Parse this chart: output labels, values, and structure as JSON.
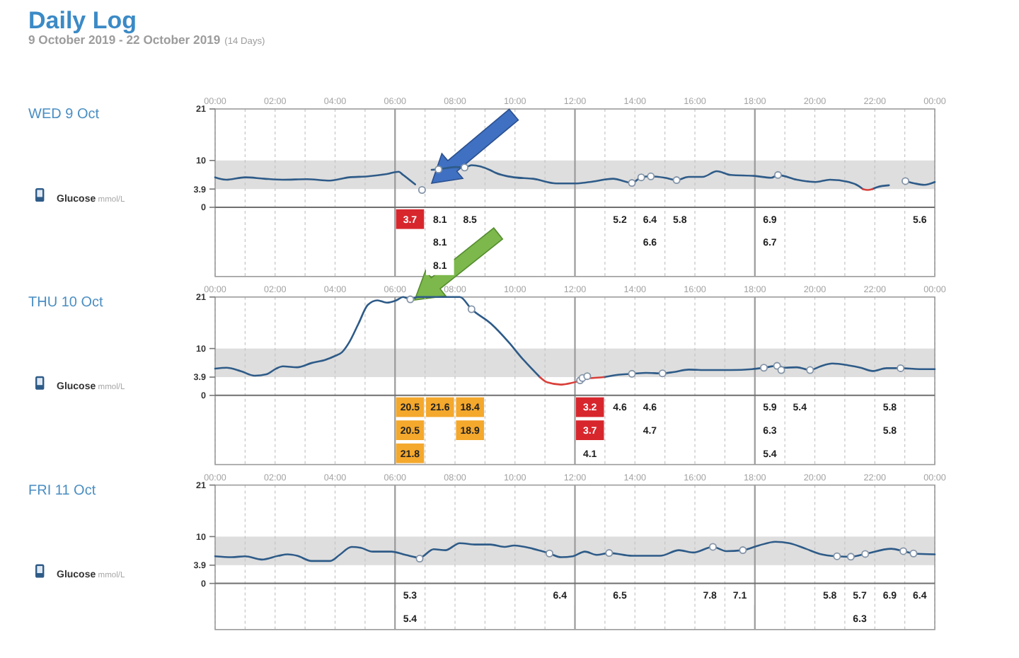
{
  "chart_data": [
    {
      "type": "line",
      "ylabel": "Glucose mmol/L",
      "annotations": [
        "Daily Log",
        "9 October 2019 - 22 October 2019",
        "(14 Days)",
        "WED 9 Oct"
      ],
      "xlim": [
        0,
        24
      ],
      "xticks": [
        {
          "value": 0,
          "label": "00:00"
        },
        {
          "value": 1,
          "label": null
        },
        {
          "value": 2,
          "label": "02:00"
        },
        {
          "value": 3,
          "label": null
        },
        {
          "value": 4,
          "label": "04:00"
        },
        {
          "value": 5,
          "label": null
        },
        {
          "value": 7,
          "label": null
        },
        {
          "value": 8,
          "label": "08:00"
        },
        {
          "value": 9,
          "label": null
        },
        {
          "value": 10,
          "label": "10:00"
        },
        {
          "value": 11,
          "label": null
        },
        {
          "value": 13,
          "label": null
        },
        {
          "value": 14,
          "label": "14:00"
        },
        {
          "value": 15,
          "label": null
        },
        {
          "value": 16,
          "label": "16:00"
        },
        {
          "value": 17,
          "label": null
        },
        {
          "value": 19,
          "label": null
        },
        {
          "value": 20,
          "label": "20:00"
        },
        {
          "value": 21,
          "label": null
        },
        {
          "value": 22,
          "label": "22:00"
        },
        {
          "value": 23,
          "label": null
        },
        {
          "value": 24,
          "label": "00:00"
        }
      ],
      "ylim": [
        0,
        21
      ],
      "yticks": [
        0,
        3.9,
        10,
        21
      ],
      "grid": "x",
      "bands": [
        {
          "axis": "y",
          "from": 3.9,
          "to": 10,
          "color": "#dedede"
        }
      ],
      "ref_lines": [
        {
          "axis": "x",
          "value": 6,
          "label": "06:00",
          "color": "#9a9a9a"
        },
        {
          "axis": "x",
          "value": 12,
          "label": "12:00",
          "color": "#9a9a9a"
        },
        {
          "axis": "x",
          "value": 18,
          "label": "18:00",
          "color": "#9a9a9a"
        }
      ],
      "series": [
        {
          "color": "#2e5b88",
          "x": [
            0,
            0.38,
            1.0,
            1.64,
            2.26,
            3.05,
            3.83,
            4.47,
            5.09,
            5.72,
            6.12,
            6.27,
            6.67,
            6.8,
            7.22,
            7.45,
            8.0,
            8.32,
            8.55,
            9.19,
            9.34,
            9.97,
            10.6,
            11.38,
            12.01,
            12.49,
            13.27,
            13.9,
            14.21,
            14.53,
            15.0,
            15.39,
            15.79,
            16.26,
            16.73,
            17.2,
            17.99,
            18.54,
            18.77,
            19.4,
            20.03,
            20.5,
            21.13,
            21.45,
            21.6,
            21.76,
            21.92,
            22.08,
            22.47,
            22.7,
            23.02,
            23.33,
            23.65,
            24
          ],
          "values": [
            6.4,
            5.9,
            6.4,
            6.1,
            5.9,
            6.0,
            5.7,
            6.4,
            6.6,
            7.1,
            7.6,
            6.9,
            4.9,
            null,
            8.0,
            8.1,
            8.6,
            8.5,
            9.0,
            7.9,
            7.4,
            6.4,
            6.1,
            5.1,
            5.1,
            5.4,
            6.1,
            5.2,
            6.4,
            6.6,
            6.3,
            5.8,
            6.5,
            6.5,
            7.7,
            6.9,
            6.7,
            6.3,
            6.9,
            5.9,
            5.4,
            5.9,
            5.4,
            4.6,
            3.9,
            null,
            3.9,
            4.3,
            4.7,
            null,
            5.6,
            5.1,
            4.8,
            5.4
          ]
        },
        {
          "color": "#d9403a",
          "x": [
            21.6,
            21.76,
            21.92
          ],
          "values": [
            3.9,
            3.7,
            3.9
          ]
        },
        {
          "type": "scatter",
          "marker": "circle",
          "color": "#8494a8",
          "x": [
            6.9,
            7.45,
            8.32,
            13.9,
            14.21,
            14.53,
            15.39,
            18.77,
            23.02
          ],
          "values": [
            3.7,
            8.1,
            8.5,
            5.2,
            6.4,
            6.6,
            5.8,
            6.9,
            5.6
          ]
        }
      ]
    },
    {
      "type": "other",
      "data_labels": true,
      "categories": [
        null,
        null,
        null,
        null,
        null,
        null,
        null,
        null,
        null,
        null,
        null,
        null,
        null,
        null,
        null,
        null,
        null,
        null,
        null,
        null,
        null,
        null,
        null,
        null
      ],
      "values": [
        null,
        null,
        null,
        null,
        null,
        null,
        3.7,
        8.1,
        8.5,
        null,
        null,
        null,
        null,
        5.2,
        6.4,
        5.8,
        null,
        null,
        6.9,
        null,
        null,
        null,
        null,
        5.6
      ],
      "colors": [
        null,
        null,
        null,
        null,
        null,
        null,
        "#d8262d",
        "#ffffff",
        "#ffffff",
        null,
        null,
        null,
        null,
        "#ffffff",
        "#ffffff",
        "#ffffff",
        null,
        null,
        "#ffffff",
        null,
        null,
        null,
        null,
        "#ffffff"
      ]
    },
    {
      "type": "other",
      "data_labels": true,
      "categories": [
        null,
        null,
        null,
        null,
        null,
        null,
        null,
        null,
        null,
        null,
        null,
        null,
        null,
        null,
        null,
        null,
        null,
        null,
        null,
        null,
        null,
        null,
        null,
        null
      ],
      "values": [
        null,
        null,
        null,
        null,
        null,
        null,
        null,
        8.1,
        null,
        null,
        null,
        null,
        null,
        null,
        6.6,
        null,
        null,
        null,
        6.7,
        null,
        null,
        null,
        null,
        null
      ],
      "colors": [
        null,
        null,
        null,
        null,
        null,
        null,
        null,
        "#ffffff",
        null,
        null,
        null,
        null,
        null,
        null,
        "#ffffff",
        null,
        null,
        null,
        "#ffffff",
        null,
        null,
        null,
        null,
        null
      ]
    },
    {
      "type": "other",
      "data_labels": true,
      "categories": [
        null,
        null,
        null,
        null,
        null,
        null,
        null,
        null,
        null,
        null,
        null,
        null,
        null,
        null,
        null,
        null,
        null,
        null,
        null,
        null,
        null,
        null,
        null,
        null
      ],
      "values": [
        null,
        null,
        null,
        null,
        null,
        null,
        null,
        8.1,
        null,
        null,
        null,
        null,
        null,
        null,
        null,
        null,
        null,
        null,
        null,
        null,
        null,
        null,
        null,
        null
      ],
      "colors": [
        null,
        null,
        null,
        null,
        null,
        null,
        null,
        "#ffffff",
        null,
        null,
        null,
        null,
        null,
        null,
        null,
        null,
        null,
        null,
        null,
        null,
        null,
        null,
        null,
        null
      ]
    },
    {
      "type": "line",
      "ylabel": "Glucose mmol/L",
      "annotations": [
        "THU 10 Oct"
      ],
      "xlim": [
        0,
        24
      ],
      "xticks": [
        {
          "value": 0,
          "label": "00:00"
        },
        {
          "value": 1,
          "label": null
        },
        {
          "value": 2,
          "label": "02:00"
        },
        {
          "value": 3,
          "label": null
        },
        {
          "value": 4,
          "label": "04:00"
        },
        {
          "value": 5,
          "label": null
        },
        {
          "value": 7,
          "label": null
        },
        {
          "value": 8,
          "label": "08:00"
        },
        {
          "value": 9,
          "label": null
        },
        {
          "value": 10,
          "label": "10:00"
        },
        {
          "value": 11,
          "label": null
        },
        {
          "value": 13,
          "label": null
        },
        {
          "value": 14,
          "label": "14:00"
        },
        {
          "value": 15,
          "label": null
        },
        {
          "value": 16,
          "label": "16:00"
        },
        {
          "value": 17,
          "label": null
        },
        {
          "value": 19,
          "label": null
        },
        {
          "value": 20,
          "label": "20:00"
        },
        {
          "value": 21,
          "label": null
        },
        {
          "value": 22,
          "label": "22:00"
        },
        {
          "value": 23,
          "label": null
        },
        {
          "value": 24,
          "label": "00:00"
        }
      ],
      "ylim": [
        0,
        21
      ],
      "yticks": [
        0,
        3.9,
        10,
        21
      ],
      "grid": "x",
      "bands": [
        {
          "axis": "y",
          "from": 3.9,
          "to": 10,
          "color": "#dedede"
        }
      ],
      "ref_lines": [
        {
          "axis": "x",
          "value": 6,
          "label": "06:00",
          "color": "#9a9a9a"
        },
        {
          "axis": "x",
          "value": 12,
          "label": "12:00",
          "color": "#9a9a9a"
        },
        {
          "axis": "x",
          "value": 18,
          "label": "18:00",
          "color": "#9a9a9a"
        }
      ],
      "series": [
        {
          "color": "#2e5b88",
          "x": [
            0,
            0.38,
            0.85,
            1.32,
            1.71,
            2.03,
            2.26,
            2.74,
            3.21,
            3.68,
            3.99,
            4.23,
            4.46,
            4.78,
            5.09,
            5.41,
            5.72,
            6.04,
            6.27,
            6.51,
            6.75,
            8.16,
            8.55,
            9.2,
            9.81,
            10.2,
            10.83,
            11.5,
            12.96,
            13.43,
            13.9,
            14.37,
            14.92,
            15.31,
            15.79,
            16.42,
            17.2,
            17.91,
            18.3,
            18.74,
            19.0,
            19.4,
            19.84,
            20.19,
            20.58,
            21.13,
            21.53,
            21.92,
            22.39,
            22.86,
            23.49,
            24
          ],
          "values": [
            5.7,
            5.9,
            5.2,
            4.2,
            4.5,
            5.7,
            6.2,
            6.0,
            6.9,
            7.6,
            8.4,
            9.2,
            11.2,
            15.3,
            19.3,
            20.3,
            19.8,
            20.3,
            21,
            20.5,
            21,
            21,
            18.4,
            15.3,
            11.2,
            8.2,
            3.9,
            null,
            3.9,
            4.4,
            4.6,
            4.8,
            4.7,
            5.0,
            5.5,
            5.4,
            5.4,
            5.6,
            5.9,
            6.3,
            5.9,
            6.0,
            5.4,
            6.2,
            6.8,
            6.4,
            5.9,
            5.2,
            5.8,
            5.8,
            5.6,
            5.6
          ]
        },
        {
          "color": "#d9403a",
          "x": [
            10.83,
            11.07,
            11.54,
            11.86,
            12.17,
            12.3,
            12.6,
            12.96
          ],
          "values": [
            3.9,
            2.8,
            2.3,
            2.6,
            3.2,
            3.6,
            3.7,
            3.9
          ]
        },
        {
          "type": "scatter",
          "marker": "circle",
          "color": "#8494a8",
          "x": [
            6.51,
            8.55,
            12.17,
            12.25,
            12.41,
            13.9,
            14.92,
            18.3,
            18.74,
            18.88,
            19.84,
            22.86
          ],
          "values": [
            20.5,
            18.4,
            3.2,
            3.7,
            4.1,
            4.6,
            4.7,
            5.9,
            6.3,
            5.4,
            5.4,
            5.8
          ]
        }
      ]
    },
    {
      "type": "other",
      "data_labels": true,
      "categories": [
        null,
        null,
        null,
        null,
        null,
        null,
        null,
        null,
        null,
        null,
        null,
        null,
        null,
        null,
        null,
        null,
        null,
        null,
        null,
        null,
        null,
        null,
        null,
        null
      ],
      "values": [
        null,
        null,
        null,
        null,
        null,
        null,
        20.5,
        21.6,
        18.4,
        null,
        null,
        null,
        3.2,
        4.6,
        4.6,
        null,
        null,
        null,
        5.9,
        5.4,
        null,
        null,
        5.8,
        null
      ],
      "colors": [
        null,
        null,
        null,
        null,
        null,
        null,
        "#f4a82c",
        "#f4a82c",
        "#f4a82c",
        null,
        null,
        null,
        "#d8262d",
        "#ffffff",
        "#ffffff",
        null,
        null,
        null,
        "#ffffff",
        "#ffffff",
        null,
        null,
        "#ffffff",
        null
      ]
    },
    {
      "type": "other",
      "data_labels": true,
      "categories": [
        null,
        null,
        null,
        null,
        null,
        null,
        null,
        null,
        null,
        null,
        null,
        null,
        null,
        null,
        null,
        null,
        null,
        null,
        null,
        null,
        null,
        null,
        null,
        null
      ],
      "values": [
        null,
        null,
        null,
        null,
        null,
        null,
        20.5,
        null,
        18.9,
        null,
        null,
        null,
        3.7,
        null,
        4.7,
        null,
        null,
        null,
        6.3,
        null,
        null,
        null,
        5.8,
        null
      ],
      "colors": [
        null,
        null,
        null,
        null,
        null,
        null,
        "#f4a82c",
        null,
        "#f4a82c",
        null,
        null,
        null,
        "#d8262d",
        null,
        "#ffffff",
        null,
        null,
        null,
        "#ffffff",
        null,
        null,
        null,
        "#ffffff",
        null
      ]
    },
    {
      "type": "other",
      "data_labels": true,
      "categories": [
        null,
        null,
        null,
        null,
        null,
        null,
        null,
        null,
        null,
        null,
        null,
        null,
        null,
        null,
        null,
        null,
        null,
        null,
        null,
        null,
        null,
        null,
        null,
        null
      ],
      "values": [
        null,
        null,
        null,
        null,
        null,
        null,
        21.8,
        null,
        null,
        null,
        null,
        null,
        4.1,
        null,
        null,
        null,
        null,
        null,
        5.4,
        null,
        null,
        null,
        null,
        null
      ],
      "colors": [
        null,
        null,
        null,
        null,
        null,
        null,
        "#f4a82c",
        null,
        null,
        null,
        null,
        null,
        "#ffffff",
        null,
        null,
        null,
        null,
        null,
        "#ffffff",
        null,
        null,
        null,
        null,
        null
      ]
    },
    {
      "type": "line",
      "ylabel": "Glucose mmol/L",
      "annotations": [
        "FRI 11 Oct"
      ],
      "xlim": [
        0,
        24
      ],
      "xticks": [
        {
          "value": 0,
          "label": "00:00"
        },
        {
          "value": 1,
          "label": null
        },
        {
          "value": 2,
          "label": "02:00"
        },
        {
          "value": 3,
          "label": null
        },
        {
          "value": 4,
          "label": "04:00"
        },
        {
          "value": 5,
          "label": null
        },
        {
          "value": 7,
          "label": null
        },
        {
          "value": 8,
          "label": "08:00"
        },
        {
          "value": 9,
          "label": null
        },
        {
          "value": 10,
          "label": "10:00"
        },
        {
          "value": 11,
          "label": null
        },
        {
          "value": 13,
          "label": null
        },
        {
          "value": 14,
          "label": "14:00"
        },
        {
          "value": 15,
          "label": null
        },
        {
          "value": 16,
          "label": "16:00"
        },
        {
          "value": 17,
          "label": null
        },
        {
          "value": 19,
          "label": null
        },
        {
          "value": 20,
          "label": "20:00"
        },
        {
          "value": 21,
          "label": null
        },
        {
          "value": 22,
          "label": "22:00"
        },
        {
          "value": 23,
          "label": null
        },
        {
          "value": 24,
          "label": "00:00"
        }
      ],
      "ylim": [
        0,
        21
      ],
      "yticks": [
        0,
        3.9,
        10,
        21
      ],
      "grid": "x",
      "bands": [
        {
          "axis": "y",
          "from": 3.9,
          "to": 10,
          "color": "#dedede"
        }
      ],
      "ref_lines": [
        {
          "axis": "x",
          "value": 6,
          "label": "06:00",
          "color": "#9a9a9a"
        },
        {
          "axis": "x",
          "value": 12,
          "label": "12:00",
          "color": "#9a9a9a"
        },
        {
          "axis": "x",
          "value": 18,
          "label": "18:00",
          "color": "#9a9a9a"
        }
      ],
      "series": [
        {
          "color": "#2e5b88",
          "x": [
            0,
            0.55,
            1.0,
            1.56,
            2.11,
            2.42,
            2.74,
            3.21,
            3.84,
            4.15,
            4.55,
            4.86,
            5.25,
            5.88,
            6.35,
            6.82,
            7.29,
            7.68,
            8.16,
            8.71,
            9.18,
            9.65,
            9.97,
            10.6,
            11.15,
            11.54,
            11.93,
            12.33,
            12.72,
            13.14,
            13.9,
            14.84,
            15.47,
            15.94,
            16.6,
            17.04,
            17.6,
            18.13,
            18.68,
            19.15,
            19.7,
            20.17,
            20.74,
            21.2,
            21.68,
            22.55,
            22.95,
            23.29,
            24
          ],
          "values": [
            5.8,
            5.6,
            5.8,
            5.1,
            5.9,
            6.2,
            5.9,
            4.8,
            4.8,
            6.1,
            7.8,
            7.6,
            6.8,
            6.8,
            6.1,
            5.5,
            7.3,
            7.1,
            8.6,
            8.3,
            8.3,
            7.8,
            8.1,
            7.4,
            6.4,
            5.6,
            5.8,
            6.8,
            6.1,
            6.5,
            5.9,
            5.9,
            7.1,
            6.6,
            7.8,
            6.9,
            7.1,
            8.1,
            8.9,
            8.6,
            7.4,
            6.3,
            5.8,
            5.7,
            6.3,
            7.4,
            6.9,
            6.4,
            6.2
          ]
        },
        {
          "type": "scatter",
          "marker": "circle",
          "color": "#8494a8",
          "x": [
            6.82,
            11.15,
            13.14,
            16.6,
            17.6,
            20.74,
            21.2,
            21.68,
            22.95,
            23.29
          ],
          "values": [
            5.3,
            6.4,
            6.5,
            7.8,
            7.1,
            5.8,
            5.7,
            6.3,
            6.9,
            6.4
          ]
        }
      ]
    },
    {
      "type": "other",
      "data_labels": true,
      "categories": [
        null,
        null,
        null,
        null,
        null,
        null,
        null,
        null,
        null,
        null,
        null,
        null,
        null,
        null,
        null,
        null,
        null,
        null,
        null,
        null,
        null,
        null,
        null,
        null
      ],
      "values": [
        null,
        null,
        null,
        null,
        null,
        null,
        5.3,
        null,
        null,
        null,
        null,
        6.4,
        null,
        6.5,
        null,
        null,
        7.8,
        7.1,
        null,
        null,
        5.8,
        5.7,
        6.9,
        6.4
      ],
      "colors": [
        null,
        null,
        null,
        null,
        null,
        null,
        "#ffffff",
        null,
        null,
        null,
        null,
        "#ffffff",
        null,
        "#ffffff",
        null,
        null,
        "#ffffff",
        "#ffffff",
        null,
        null,
        "#ffffff",
        "#ffffff",
        "#ffffff",
        "#ffffff"
      ]
    },
    {
      "type": "other",
      "data_labels": true,
      "categories": [
        null,
        null,
        null,
        null,
        null,
        null,
        null,
        null,
        null,
        null,
        null,
        null,
        null,
        null,
        null,
        null,
        null,
        null,
        null,
        null,
        null,
        null,
        null,
        null
      ],
      "values": [
        null,
        null,
        null,
        null,
        null,
        null,
        5.4,
        null,
        null,
        null,
        null,
        null,
        null,
        null,
        null,
        null,
        null,
        null,
        null,
        null,
        null,
        6.3,
        null,
        null
      ],
      "colors": [
        null,
        null,
        null,
        null,
        null,
        null,
        "#ffffff",
        null,
        null,
        null,
        null,
        null,
        null,
        null,
        null,
        null,
        null,
        null,
        null,
        null,
        null,
        "#ffffff",
        null,
        null
      ]
    }
  ]
}
